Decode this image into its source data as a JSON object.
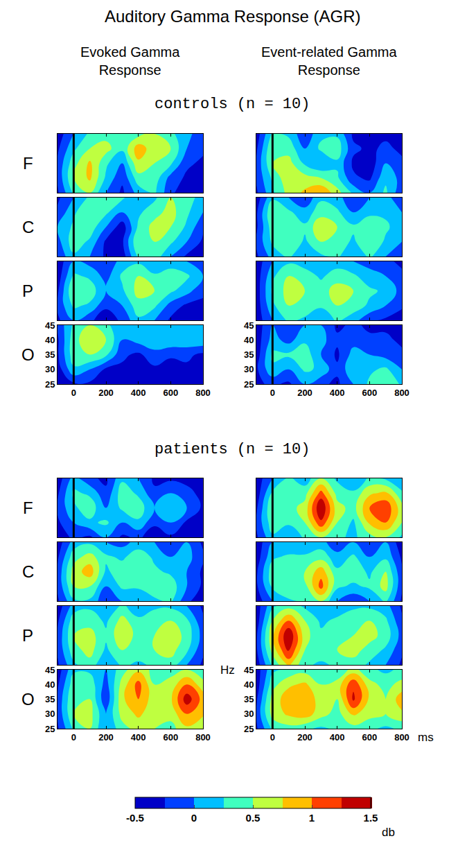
{
  "title": "Auditory Gamma Response (AGR)",
  "column_titles": [
    "Evoked Gamma Response",
    "Event-related Gamma Response"
  ],
  "group_titles": [
    "controls (n = 10)",
    "patients (n = 10)"
  ],
  "row_labels": [
    "F",
    "C",
    "P",
    "O"
  ],
  "x": [
    -100,
    0,
    100,
    200,
    300,
    400,
    500,
    600,
    700,
    800
  ],
  "y": [
    25,
    30,
    35,
    40,
    45
  ],
  "xlim": [
    -100,
    800
  ],
  "ylim": [
    25,
    45
  ],
  "xticks": [
    0,
    200,
    400,
    600,
    800
  ],
  "yticks": [
    25,
    30,
    35,
    40,
    45
  ],
  "vline_x": 0,
  "colorbar": {
    "range": [
      -0.5,
      1.5
    ],
    "ticks": [
      -0.5,
      0,
      0.5,
      1,
      1.5
    ],
    "label": "db"
  },
  "chart_data": [
    {
      "type": "heatmap",
      "group": "controls (n = 10)",
      "column": "Evoked Gamma Response",
      "row": "F",
      "tick_labels": false,
      "z": [
        [
          -0.3,
          0.3,
          0.5,
          0.0,
          -0.3,
          0.1,
          0.3,
          -0.2,
          -0.4,
          -0.4
        ],
        [
          -0.2,
          0.5,
          0.8,
          0.2,
          -0.2,
          0.4,
          0.4,
          -0.1,
          -0.3,
          -0.3
        ],
        [
          -0.2,
          0.4,
          0.8,
          0.3,
          0.0,
          0.7,
          0.5,
          0.3,
          -0.2,
          -0.3
        ],
        [
          -0.3,
          0.2,
          0.5,
          0.6,
          0.3,
          0.9,
          0.6,
          0.5,
          0.0,
          -0.2
        ],
        [
          -0.4,
          0.0,
          0.3,
          0.4,
          0.5,
          0.4,
          0.5,
          0.3,
          0.1,
          -0.2
        ]
      ]
    },
    {
      "type": "heatmap",
      "group": "controls (n = 10)",
      "column": "Evoked Gamma Response",
      "row": "C",
      "tick_labels": false,
      "z": [
        [
          -0.2,
          0.2,
          0.0,
          -0.3,
          -0.4,
          0.3,
          0.4,
          0.0,
          -0.3,
          -0.4
        ],
        [
          -0.1,
          0.4,
          0.2,
          -0.3,
          -0.3,
          0.5,
          0.5,
          0.3,
          0.0,
          -0.3
        ],
        [
          0.0,
          0.3,
          0.4,
          0.0,
          -0.4,
          0.3,
          0.6,
          0.5,
          0.2,
          -0.2
        ],
        [
          -0.2,
          0.2,
          0.5,
          0.3,
          0.0,
          0.2,
          0.4,
          0.6,
          0.3,
          0.0
        ],
        [
          -0.3,
          0.0,
          0.3,
          0.4,
          0.3,
          0.0,
          0.2,
          0.5,
          0.4,
          0.1
        ]
      ]
    },
    {
      "type": "heatmap",
      "group": "controls (n = 10)",
      "column": "Evoked Gamma Response",
      "row": "P",
      "tick_labels": false,
      "z": [
        [
          -0.3,
          0.0,
          -0.2,
          -0.4,
          -0.2,
          0.2,
          0.0,
          -0.3,
          -0.4,
          -0.4
        ],
        [
          -0.2,
          0.3,
          0.2,
          -0.2,
          0.0,
          0.4,
          0.3,
          -0.1,
          -0.3,
          -0.3
        ],
        [
          -0.3,
          0.5,
          0.4,
          0.0,
          0.2,
          0.6,
          0.5,
          0.3,
          0.1,
          -0.2
        ],
        [
          -0.4,
          0.3,
          0.2,
          -0.1,
          0.3,
          0.5,
          0.3,
          0.4,
          0.3,
          0.0
        ],
        [
          -0.4,
          0.0,
          -0.1,
          -0.2,
          0.1,
          0.2,
          0.0,
          0.1,
          0.0,
          -0.2
        ]
      ]
    },
    {
      "type": "heatmap",
      "group": "controls (n = 10)",
      "column": "Evoked Gamma Response",
      "row": "O",
      "tick_labels": true,
      "z": [
        [
          -0.5,
          -0.3,
          -0.3,
          -0.4,
          -0.4,
          -0.5,
          -0.4,
          -0.4,
          -0.4,
          -0.4
        ],
        [
          -0.4,
          0.2,
          0.0,
          -0.3,
          -0.3,
          -0.4,
          -0.3,
          -0.4,
          -0.3,
          -0.3
        ],
        [
          -0.3,
          0.4,
          0.5,
          0.3,
          -0.2,
          -0.3,
          -0.1,
          -0.2,
          -0.2,
          -0.3
        ],
        [
          -0.3,
          0.4,
          0.7,
          0.5,
          0.0,
          0.1,
          0.2,
          0.2,
          0.2,
          0.2
        ],
        [
          -0.2,
          0.3,
          0.5,
          0.3,
          0.1,
          0.2,
          0.2,
          0.2,
          0.2,
          0.2
        ]
      ]
    },
    {
      "type": "heatmap",
      "group": "controls (n = 10)",
      "column": "Event-related Gamma Response",
      "row": "F",
      "tick_labels": false,
      "z": [
        [
          -0.3,
          0.2,
          0.6,
          0.8,
          1.0,
          0.6,
          0.2,
          0.0,
          0.3,
          -0.2
        ],
        [
          -0.2,
          0.3,
          0.7,
          0.6,
          0.5,
          0.3,
          -0.2,
          -0.3,
          0.2,
          -0.1
        ],
        [
          -0.2,
          0.5,
          0.6,
          0.2,
          0.0,
          0.2,
          -0.3,
          -0.4,
          0.0,
          -0.2
        ],
        [
          -0.3,
          0.5,
          0.4,
          0.0,
          0.3,
          0.4,
          -0.2,
          -0.3,
          -0.2,
          -0.3
        ],
        [
          -0.4,
          0.3,
          0.2,
          -0.2,
          0.2,
          0.2,
          -0.3,
          -0.4,
          -0.3,
          -0.4
        ]
      ]
    },
    {
      "type": "heatmap",
      "group": "controls (n = 10)",
      "column": "Event-related Gamma Response",
      "row": "C",
      "tick_labels": false,
      "z": [
        [
          -0.3,
          0.1,
          0.3,
          0.0,
          0.2,
          0.3,
          0.0,
          0.3,
          0.0,
          -0.2
        ],
        [
          -0.2,
          0.3,
          0.5,
          0.2,
          0.5,
          0.4,
          0.2,
          0.5,
          0.2,
          0.0
        ],
        [
          -0.3,
          0.4,
          0.4,
          0.3,
          0.7,
          0.5,
          0.3,
          0.4,
          0.3,
          0.1
        ],
        [
          -0.3,
          0.5,
          0.3,
          0.1,
          0.4,
          0.3,
          0.0,
          0.2,
          0.2,
          0.0
        ],
        [
          -0.4,
          0.2,
          0.0,
          -0.2,
          0.2,
          0.1,
          -0.2,
          0.0,
          0.1,
          -0.2
        ]
      ]
    },
    {
      "type": "heatmap",
      "group": "controls (n = 10)",
      "column": "Event-related Gamma Response",
      "row": "P",
      "tick_labels": false,
      "z": [
        [
          -0.4,
          0.0,
          0.3,
          0.2,
          0.0,
          0.3,
          0.1,
          -0.2,
          -0.3,
          -0.4
        ],
        [
          -0.4,
          0.2,
          0.5,
          0.4,
          0.3,
          0.5,
          0.4,
          0.2,
          0.0,
          -0.2
        ],
        [
          -0.4,
          0.3,
          0.6,
          0.5,
          0.4,
          0.6,
          0.5,
          0.3,
          0.2,
          -0.1
        ],
        [
          -0.4,
          0.2,
          0.5,
          0.4,
          0.2,
          0.4,
          0.3,
          0.1,
          0.0,
          -0.2
        ],
        [
          -0.4,
          0.0,
          0.2,
          0.1,
          0.0,
          0.1,
          0.0,
          -0.1,
          -0.2,
          -0.3
        ]
      ]
    },
    {
      "type": "heatmap",
      "group": "controls (n = 10)",
      "column": "Event-related Gamma Response",
      "row": "O",
      "tick_labels": true,
      "z": [
        [
          -0.3,
          -0.2,
          -0.3,
          0.0,
          -0.2,
          -0.3,
          0.0,
          0.3,
          0.5,
          0.2
        ],
        [
          -0.3,
          0.2,
          0.0,
          0.3,
          0.2,
          -0.2,
          0.2,
          0.2,
          0.3,
          0.0
        ],
        [
          -0.4,
          0.3,
          0.3,
          0.4,
          0.0,
          -0.3,
          0.1,
          0.0,
          -0.1,
          -0.2
        ],
        [
          -0.4,
          0.1,
          -0.1,
          0.2,
          0.1,
          -0.2,
          -0.1,
          -0.2,
          -0.2,
          -0.3
        ],
        [
          -0.4,
          0.0,
          -0.2,
          0.0,
          0.0,
          -0.3,
          -0.2,
          -0.3,
          -0.3,
          -0.3
        ]
      ]
    },
    {
      "type": "heatmap",
      "group": "patients (n = 10)",
      "column": "Evoked Gamma Response",
      "row": "F",
      "tick_labels": false,
      "z": [
        [
          -0.4,
          -0.2,
          -0.3,
          0.0,
          -0.3,
          -0.2,
          -0.4,
          -0.3,
          -0.4,
          -0.4
        ],
        [
          -0.3,
          0.0,
          0.2,
          0.3,
          0.0,
          0.2,
          -0.2,
          0.0,
          -0.3,
          -0.4
        ],
        [
          -0.2,
          0.2,
          0.4,
          0.0,
          0.3,
          0.4,
          0.0,
          0.2,
          0.0,
          -0.3
        ],
        [
          -0.3,
          0.3,
          0.2,
          -0.2,
          0.4,
          0.2,
          -0.2,
          0.0,
          -0.2,
          -0.3
        ],
        [
          -0.4,
          0.1,
          -0.2,
          -0.3,
          0.2,
          0.0,
          -0.3,
          -0.3,
          -0.3,
          -0.4
        ]
      ]
    },
    {
      "type": "heatmap",
      "group": "patients (n = 10)",
      "column": "Evoked Gamma Response",
      "row": "C",
      "tick_labels": false,
      "z": [
        [
          -0.3,
          0.2,
          0.2,
          -0.2,
          0.0,
          0.0,
          0.2,
          0.3,
          -0.2,
          -0.4
        ],
        [
          -0.2,
          0.5,
          0.5,
          0.0,
          0.3,
          0.3,
          0.4,
          0.4,
          0.0,
          -0.3
        ],
        [
          -0.2,
          0.6,
          0.9,
          0.2,
          0.4,
          0.5,
          0.3,
          0.2,
          0.0,
          -0.3
        ],
        [
          -0.3,
          0.4,
          0.6,
          0.3,
          0.2,
          0.4,
          0.2,
          0.0,
          0.1,
          -0.2
        ],
        [
          -0.4,
          0.1,
          0.2,
          0.0,
          -0.1,
          0.1,
          0.0,
          -0.2,
          0.0,
          -0.3
        ]
      ]
    },
    {
      "type": "heatmap",
      "group": "patients (n = 10)",
      "column": "Evoked Gamma Response",
      "row": "P",
      "tick_labels": false,
      "z": [
        [
          -0.3,
          0.2,
          0.4,
          0.0,
          0.3,
          0.2,
          0.3,
          0.4,
          0.0,
          -0.3
        ],
        [
          -0.2,
          0.4,
          0.6,
          0.2,
          0.5,
          0.4,
          0.5,
          0.6,
          0.3,
          -0.2
        ],
        [
          -0.2,
          0.5,
          0.6,
          0.3,
          0.7,
          0.4,
          0.5,
          0.7,
          0.4,
          -0.1
        ],
        [
          -0.3,
          0.4,
          0.4,
          0.2,
          0.6,
          0.3,
          0.4,
          0.5,
          0.3,
          -0.2
        ],
        [
          -0.4,
          0.1,
          0.2,
          0.0,
          0.3,
          0.1,
          0.2,
          0.2,
          0.0,
          -0.3
        ]
      ]
    },
    {
      "type": "heatmap",
      "group": "patients (n = 10)",
      "column": "Evoked Gamma Response",
      "row": "O",
      "tick_labels": true,
      "z": [
        [
          -0.3,
          0.3,
          0.5,
          0.0,
          0.4,
          0.6,
          0.5,
          0.4,
          0.7,
          0.5
        ],
        [
          -0.2,
          0.5,
          0.6,
          0.0,
          0.6,
          0.8,
          0.6,
          0.6,
          1.0,
          0.8
        ],
        [
          -0.2,
          0.5,
          0.5,
          -0.2,
          0.7,
          1.0,
          0.6,
          0.7,
          1.4,
          0.9
        ],
        [
          -0.3,
          0.4,
          0.4,
          -0.1,
          0.6,
          1.1,
          0.5,
          0.6,
          1.0,
          0.6
        ],
        [
          -0.4,
          0.2,
          0.2,
          0.0,
          0.4,
          0.7,
          0.4,
          0.4,
          0.5,
          0.3
        ]
      ]
    },
    {
      "type": "heatmap",
      "group": "patients (n = 10)",
      "column": "Event-related Gamma Response",
      "row": "F",
      "tick_labels": false,
      "z": [
        [
          -0.3,
          0.2,
          0.0,
          0.3,
          0.5,
          0.3,
          0.2,
          0.4,
          0.5,
          0.2
        ],
        [
          -0.2,
          0.4,
          0.3,
          0.5,
          1.2,
          0.5,
          0.2,
          0.8,
          1.0,
          0.5
        ],
        [
          -0.3,
          0.5,
          0.4,
          0.6,
          1.5,
          0.6,
          0.4,
          1.0,
          1.2,
          0.6
        ],
        [
          -0.4,
          0.3,
          0.5,
          0.4,
          1.1,
          0.4,
          0.3,
          0.7,
          0.8,
          0.3
        ],
        [
          -0.4,
          0.0,
          0.3,
          0.1,
          0.5,
          0.2,
          0.0,
          0.3,
          0.2,
          0.0
        ]
      ]
    },
    {
      "type": "heatmap",
      "group": "patients (n = 10)",
      "column": "Event-related Gamma Response",
      "row": "C",
      "tick_labels": false,
      "z": [
        [
          -0.4,
          0.0,
          0.2,
          0.3,
          0.5,
          0.0,
          -0.2,
          0.0,
          0.3,
          -0.3
        ],
        [
          -0.3,
          0.3,
          0.5,
          0.4,
          1.1,
          0.3,
          0.2,
          0.3,
          0.6,
          -0.2
        ],
        [
          -0.3,
          0.4,
          0.4,
          0.5,
          0.9,
          0.3,
          0.4,
          0.2,
          0.5,
          -0.2
        ],
        [
          -0.4,
          0.2,
          0.3,
          0.3,
          0.4,
          0.1,
          0.3,
          0.0,
          0.2,
          -0.3
        ],
        [
          -0.4,
          0.0,
          0.0,
          0.0,
          0.1,
          -0.2,
          0.0,
          -0.2,
          0.0,
          -0.4
        ]
      ]
    },
    {
      "type": "heatmap",
      "group": "patients (n = 10)",
      "column": "Event-related Gamma Response",
      "row": "P",
      "tick_labels": false,
      "z": [
        [
          -0.4,
          0.3,
          0.8,
          0.3,
          0.2,
          0.3,
          0.4,
          0.2,
          0.0,
          -0.3
        ],
        [
          -0.3,
          0.6,
          1.3,
          0.5,
          0.4,
          0.5,
          0.6,
          0.4,
          0.2,
          -0.2
        ],
        [
          -0.3,
          0.7,
          1.5,
          0.6,
          0.3,
          0.4,
          0.5,
          0.6,
          0.4,
          -0.1
        ],
        [
          -0.4,
          0.5,
          1.0,
          0.5,
          0.2,
          0.3,
          0.4,
          0.5,
          0.3,
          -0.2
        ],
        [
          -0.4,
          0.2,
          0.4,
          0.2,
          0.0,
          0.1,
          0.2,
          0.2,
          0.1,
          -0.3
        ]
      ]
    },
    {
      "type": "heatmap",
      "group": "patients (n = 10)",
      "column": "Event-related Gamma Response",
      "row": "O",
      "tick_labels": true,
      "xlabel": "ms",
      "ylabel": "Hz",
      "z": [
        [
          -0.3,
          0.3,
          0.4,
          0.3,
          0.2,
          0.3,
          0.4,
          0.3,
          0.2,
          0.3
        ],
        [
          -0.2,
          0.6,
          0.8,
          0.9,
          0.6,
          0.4,
          0.8,
          0.6,
          0.5,
          0.7
        ],
        [
          -0.3,
          0.6,
          0.9,
          1.0,
          0.6,
          0.5,
          1.3,
          0.7,
          0.5,
          0.9
        ],
        [
          -0.4,
          0.4,
          0.7,
          0.8,
          0.5,
          0.6,
          1.2,
          0.6,
          0.4,
          0.6
        ],
        [
          -0.4,
          0.2,
          0.3,
          0.4,
          0.3,
          0.3,
          0.6,
          0.3,
          0.2,
          0.3
        ]
      ]
    }
  ]
}
